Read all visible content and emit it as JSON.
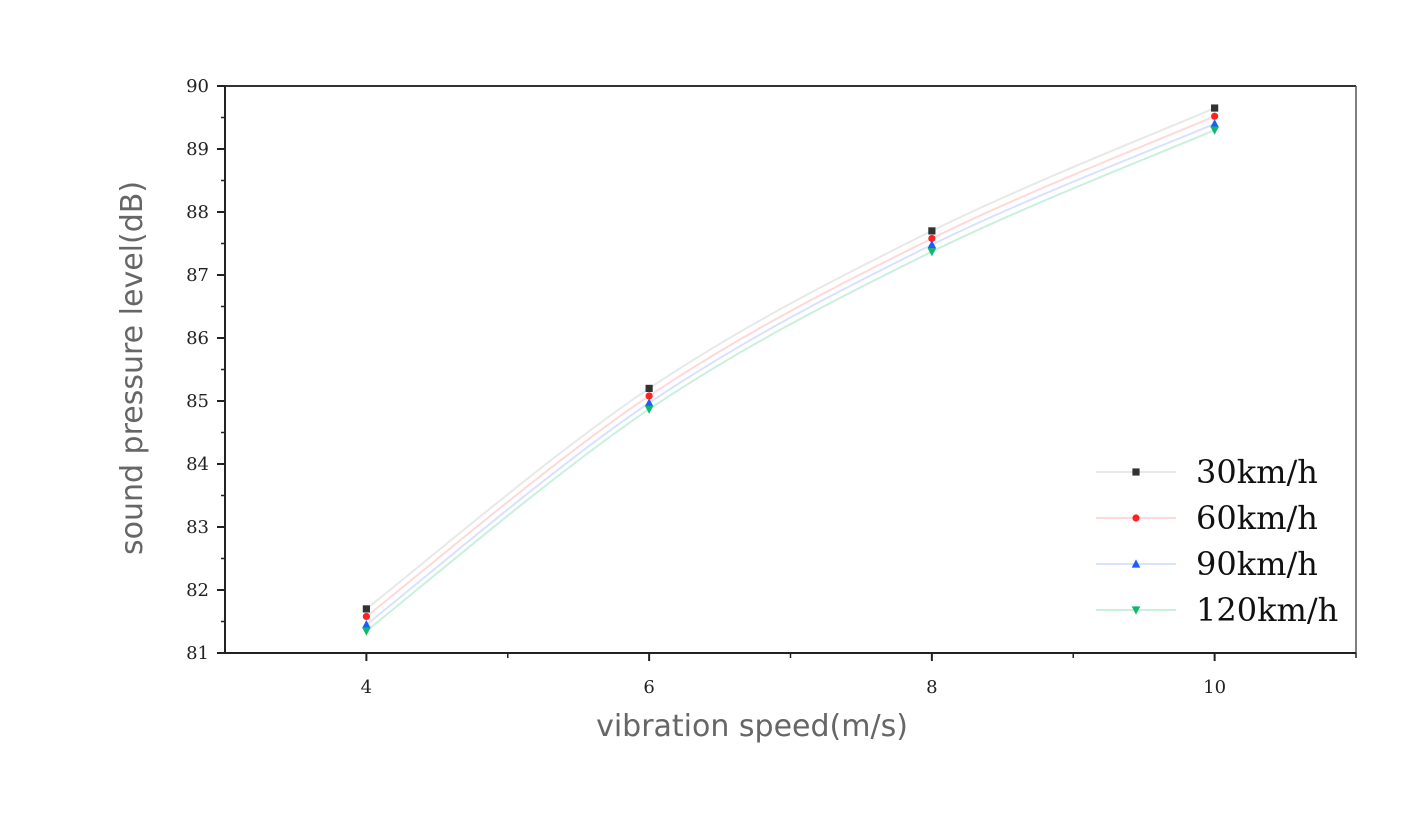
{
  "chart_data": {
    "type": "line",
    "xlabel": "vibration speed(m/s)",
    "ylabel": "sound pressure level(dB)",
    "xlim": [
      3,
      11
    ],
    "ylim": [
      81,
      90
    ],
    "x_ticks": [
      "4",
      "6",
      "8",
      "10"
    ],
    "y_ticks": [
      "81",
      "82",
      "83",
      "84",
      "85",
      "86",
      "87",
      "88",
      "89",
      "90"
    ],
    "x": [
      4,
      6,
      8,
      10
    ],
    "legend_position": "bottom-right",
    "grid": false,
    "series": [
      {
        "name": "30km/h",
        "values": [
          81.7,
          85.2,
          87.7,
          89.65
        ],
        "color": "#333333",
        "line_color": "#e8e8e8",
        "marker": "square"
      },
      {
        "name": "60km/h",
        "values": [
          81.58,
          85.08,
          87.58,
          89.52
        ],
        "color": "#ff2222",
        "line_color": "#ffd9d9",
        "marker": "circle"
      },
      {
        "name": "90km/h",
        "values": [
          81.45,
          84.97,
          87.48,
          89.4
        ],
        "color": "#1a5cff",
        "line_color": "#d6e2ff",
        "marker": "triangle-up"
      },
      {
        "name": "120km/h",
        "values": [
          81.35,
          84.87,
          87.37,
          89.3
        ],
        "color": "#0fb86a",
        "line_color": "#c9f0dd",
        "marker": "triangle-down"
      }
    ]
  }
}
